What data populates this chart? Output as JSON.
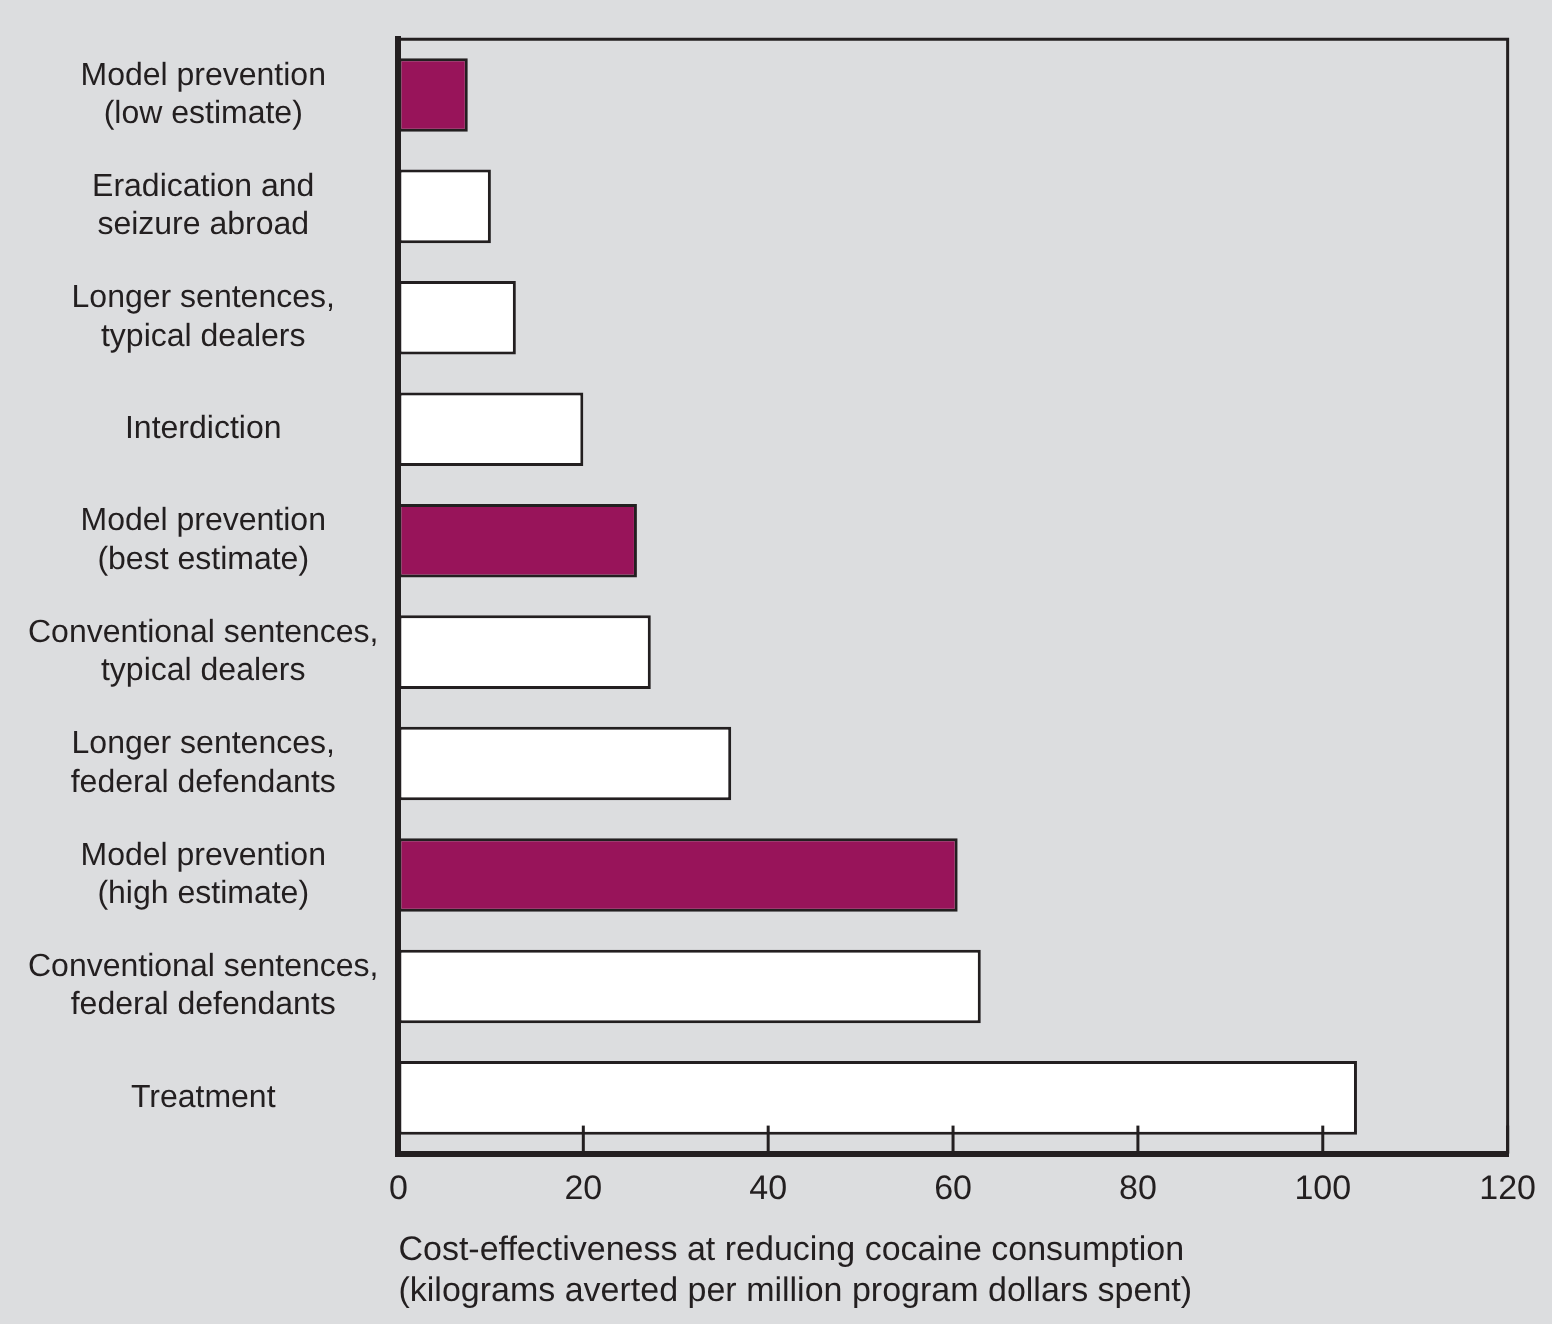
{
  "chart_data": {
    "type": "bar",
    "orientation": "horizontal",
    "categories": [
      "Model prevention\n(low estimate)",
      "Eradication and\nseizure abroad",
      "Longer sentences,\ntypical dealers",
      "Interdiction",
      "Model prevention\n(best estimate)",
      "Conventional sentences,\ntypical dealers",
      "Longer sentences,\nfederal defendants",
      "Model prevention\n(high estimate)",
      "Conventional sentences,\nfederal defendants",
      "Treatment"
    ],
    "values": [
      7.5,
      10,
      12.7,
      20,
      25.8,
      27.3,
      36,
      60.5,
      63,
      103.7
    ],
    "colors": [
      "#98145a",
      "#ffffff",
      "#ffffff",
      "#ffffff",
      "#98145a",
      "#ffffff",
      "#ffffff",
      "#98145a",
      "#ffffff",
      "#ffffff"
    ],
    "xlabel": "Cost-effectiveness at reducing cocaine consumption\n(kilograms averted per million program dollars spent)",
    "xlim": [
      0,
      120
    ],
    "xticks": [
      0,
      20,
      40,
      60,
      80,
      100,
      120
    ],
    "grid": false,
    "legend": false
  }
}
